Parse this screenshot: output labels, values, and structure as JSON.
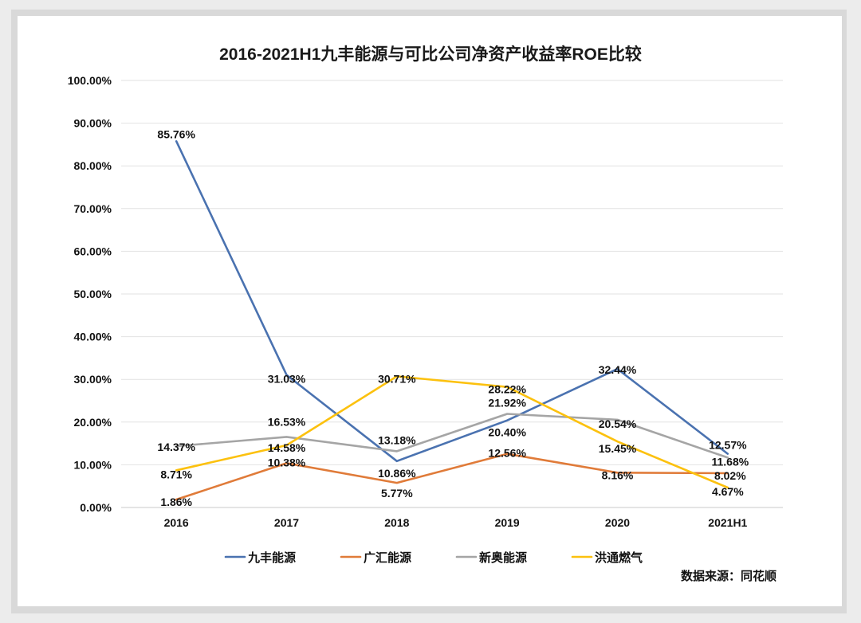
{
  "chart_data": {
    "type": "line",
    "title": "2016-2021H1九丰能源与可比公司净资产收益率ROE比较",
    "categories": [
      "2016",
      "2017",
      "2018",
      "2019",
      "2020",
      "2021H1"
    ],
    "y_ticks": [
      "0.00%",
      "10.00%",
      "20.00%",
      "30.00%",
      "40.00%",
      "50.00%",
      "60.00%",
      "70.00%",
      "80.00%",
      "90.00%",
      "100.00%"
    ],
    "ylim": [
      0,
      100
    ],
    "grid": true,
    "legend_position": "bottom",
    "series": [
      {
        "name": "九丰能源",
        "color": "#4a72b0",
        "values": [
          85.76,
          31.03,
          10.86,
          20.4,
          32.44,
          12.57
        ],
        "labels": [
          "85.76%",
          "31.03%",
          "10.86%",
          "20.40%",
          "32.44%",
          "12.57%"
        ]
      },
      {
        "name": "广汇能源",
        "color": "#e07b39",
        "values": [
          1.86,
          10.38,
          5.77,
          12.56,
          8.16,
          8.02
        ],
        "labels": [
          "1.86%",
          "10.38%",
          "5.77%",
          "12.56%",
          "8.16%",
          "8.02%"
        ]
      },
      {
        "name": "新奥能源",
        "color": "#a5a5a5",
        "values": [
          14.37,
          16.53,
          13.18,
          21.92,
          20.54,
          11.68
        ],
        "labels": [
          "14.37%",
          "16.53%",
          "13.18%",
          "21.92%",
          "20.54%",
          "11.68%"
        ]
      },
      {
        "name": "洪通燃气",
        "color": "#fcc10e",
        "values": [
          8.71,
          14.58,
          30.71,
          28.22,
          15.45,
          4.67
        ],
        "labels": [
          "8.71%",
          "14.58%",
          "30.71%",
          "28.22%",
          "15.45%",
          "4.67%"
        ]
      }
    ],
    "source_note": "数据来源：同花顺"
  }
}
